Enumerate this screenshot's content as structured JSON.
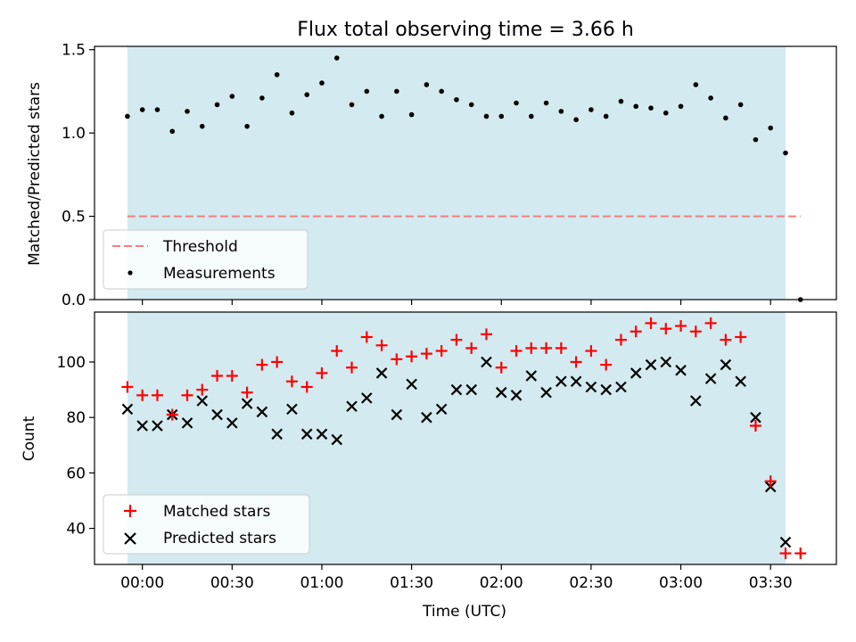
{
  "figure": {
    "title": "Flux total observing time = 3.66 h",
    "xlabel": "Time (UTC)"
  },
  "chart_data": [
    {
      "type": "scatter",
      "panel": "top",
      "ylabel": "Matched/Predicted stars",
      "ylim": [
        0,
        1.52
      ],
      "yticks": [
        0.0,
        0.5,
        1.0,
        1.5
      ],
      "ytick_labels": [
        "0.0",
        "0.5",
        "1.0",
        "1.5"
      ],
      "x_unit": "minutes after 00:00 UTC",
      "xlim": [
        -16,
        232
      ],
      "shaded_interval": {
        "x": [
          -5,
          215
        ],
        "color": "#d3eaf0"
      },
      "threshold": {
        "name": "Threshold",
        "y": 0.5,
        "x": [
          -5,
          220
        ],
        "color": "#f08080",
        "style": "dashed"
      },
      "series": [
        {
          "name": "Measurements",
          "marker": "dot",
          "color": "#000000",
          "points": [
            [
              -5,
              1.1
            ],
            [
              0,
              1.14
            ],
            [
              5,
              1.14
            ],
            [
              10,
              1.01
            ],
            [
              15,
              1.13
            ],
            [
              20,
              1.04
            ],
            [
              25,
              1.17
            ],
            [
              30,
              1.22
            ],
            [
              35,
              1.04
            ],
            [
              40,
              1.21
            ],
            [
              45,
              1.35
            ],
            [
              50,
              1.12
            ],
            [
              55,
              1.23
            ],
            [
              60,
              1.3
            ],
            [
              65,
              1.45
            ],
            [
              70,
              1.17
            ],
            [
              75,
              1.25
            ],
            [
              80,
              1.1
            ],
            [
              85,
              1.25
            ],
            [
              90,
              1.11
            ],
            [
              95,
              1.29
            ],
            [
              100,
              1.25
            ],
            [
              105,
              1.2
            ],
            [
              110,
              1.17
            ],
            [
              115,
              1.1
            ],
            [
              120,
              1.1
            ],
            [
              125,
              1.18
            ],
            [
              130,
              1.1
            ],
            [
              135,
              1.18
            ],
            [
              140,
              1.13
            ],
            [
              145,
              1.08
            ],
            [
              150,
              1.14
            ],
            [
              155,
              1.1
            ],
            [
              160,
              1.19
            ],
            [
              165,
              1.16
            ],
            [
              170,
              1.15
            ],
            [
              175,
              1.12
            ],
            [
              180,
              1.16
            ],
            [
              185,
              1.29
            ],
            [
              190,
              1.21
            ],
            [
              195,
              1.09
            ],
            [
              200,
              1.17
            ],
            [
              205,
              0.96
            ],
            [
              210,
              1.03
            ],
            [
              215,
              0.88
            ],
            [
              220,
              0.0
            ]
          ]
        }
      ],
      "legend": {
        "location": "lower-left",
        "entries": [
          "Threshold",
          "Measurements"
        ]
      }
    },
    {
      "type": "scatter",
      "panel": "bottom",
      "ylabel": "Count",
      "ylim": [
        27,
        118
      ],
      "yticks": [
        40,
        60,
        80,
        100
      ],
      "ytick_labels": [
        "40",
        "60",
        "80",
        "100"
      ],
      "x_unit": "minutes after 00:00 UTC",
      "xlim": [
        -16,
        232
      ],
      "xticks": [
        0,
        30,
        60,
        90,
        120,
        150,
        180,
        210
      ],
      "xtick_labels": [
        "00:00",
        "00:30",
        "01:00",
        "01:30",
        "02:00",
        "02:30",
        "03:00",
        "03:30"
      ],
      "shaded_interval": {
        "x": [
          -5,
          215
        ],
        "color": "#d3eaf0"
      },
      "series": [
        {
          "name": "Matched stars",
          "marker": "plus",
          "color": "#ff0000",
          "points": [
            [
              -5,
              91
            ],
            [
              0,
              88
            ],
            [
              5,
              88
            ],
            [
              10,
              81
            ],
            [
              15,
              88
            ],
            [
              20,
              90
            ],
            [
              25,
              95
            ],
            [
              30,
              95
            ],
            [
              35,
              89
            ],
            [
              40,
              99
            ],
            [
              45,
              100
            ],
            [
              50,
              93
            ],
            [
              55,
              91
            ],
            [
              60,
              96
            ],
            [
              65,
              104
            ],
            [
              70,
              98
            ],
            [
              75,
              109
            ],
            [
              80,
              106
            ],
            [
              85,
              101
            ],
            [
              90,
              102
            ],
            [
              95,
              103
            ],
            [
              100,
              104
            ],
            [
              105,
              108
            ],
            [
              110,
              105
            ],
            [
              115,
              110
            ],
            [
              120,
              98
            ],
            [
              125,
              104
            ],
            [
              130,
              105
            ],
            [
              135,
              105
            ],
            [
              140,
              105
            ],
            [
              145,
              100
            ],
            [
              150,
              104
            ],
            [
              155,
              99
            ],
            [
              160,
              108
            ],
            [
              165,
              111
            ],
            [
              170,
              114
            ],
            [
              175,
              112
            ],
            [
              180,
              113
            ],
            [
              185,
              111
            ],
            [
              190,
              114
            ],
            [
              195,
              108
            ],
            [
              200,
              109
            ],
            [
              205,
              77
            ],
            [
              210,
              57
            ],
            [
              215,
              31
            ],
            [
              220,
              31
            ]
          ]
        },
        {
          "name": "Predicted stars",
          "marker": "x",
          "color": "#000000",
          "points": [
            [
              -5,
              83
            ],
            [
              0,
              77
            ],
            [
              5,
              77
            ],
            [
              10,
              81
            ],
            [
              15,
              78
            ],
            [
              20,
              86
            ],
            [
              25,
              81
            ],
            [
              30,
              78
            ],
            [
              35,
              85
            ],
            [
              40,
              82
            ],
            [
              45,
              74
            ],
            [
              50,
              83
            ],
            [
              55,
              74
            ],
            [
              60,
              74
            ],
            [
              65,
              72
            ],
            [
              70,
              84
            ],
            [
              75,
              87
            ],
            [
              80,
              96
            ],
            [
              85,
              81
            ],
            [
              90,
              92
            ],
            [
              95,
              80
            ],
            [
              100,
              83
            ],
            [
              105,
              90
            ],
            [
              110,
              90
            ],
            [
              115,
              100
            ],
            [
              120,
              89
            ],
            [
              125,
              88
            ],
            [
              130,
              95
            ],
            [
              135,
              89
            ],
            [
              140,
              93
            ],
            [
              145,
              93
            ],
            [
              150,
              91
            ],
            [
              155,
              90
            ],
            [
              160,
              91
            ],
            [
              165,
              96
            ],
            [
              170,
              99
            ],
            [
              175,
              100
            ],
            [
              180,
              97
            ],
            [
              185,
              86
            ],
            [
              190,
              94
            ],
            [
              195,
              99
            ],
            [
              200,
              93
            ],
            [
              205,
              80
            ],
            [
              210,
              55
            ],
            [
              215,
              35
            ]
          ]
        }
      ],
      "legend": {
        "location": "lower-left",
        "entries": [
          "Matched stars",
          "Predicted stars"
        ]
      }
    }
  ]
}
